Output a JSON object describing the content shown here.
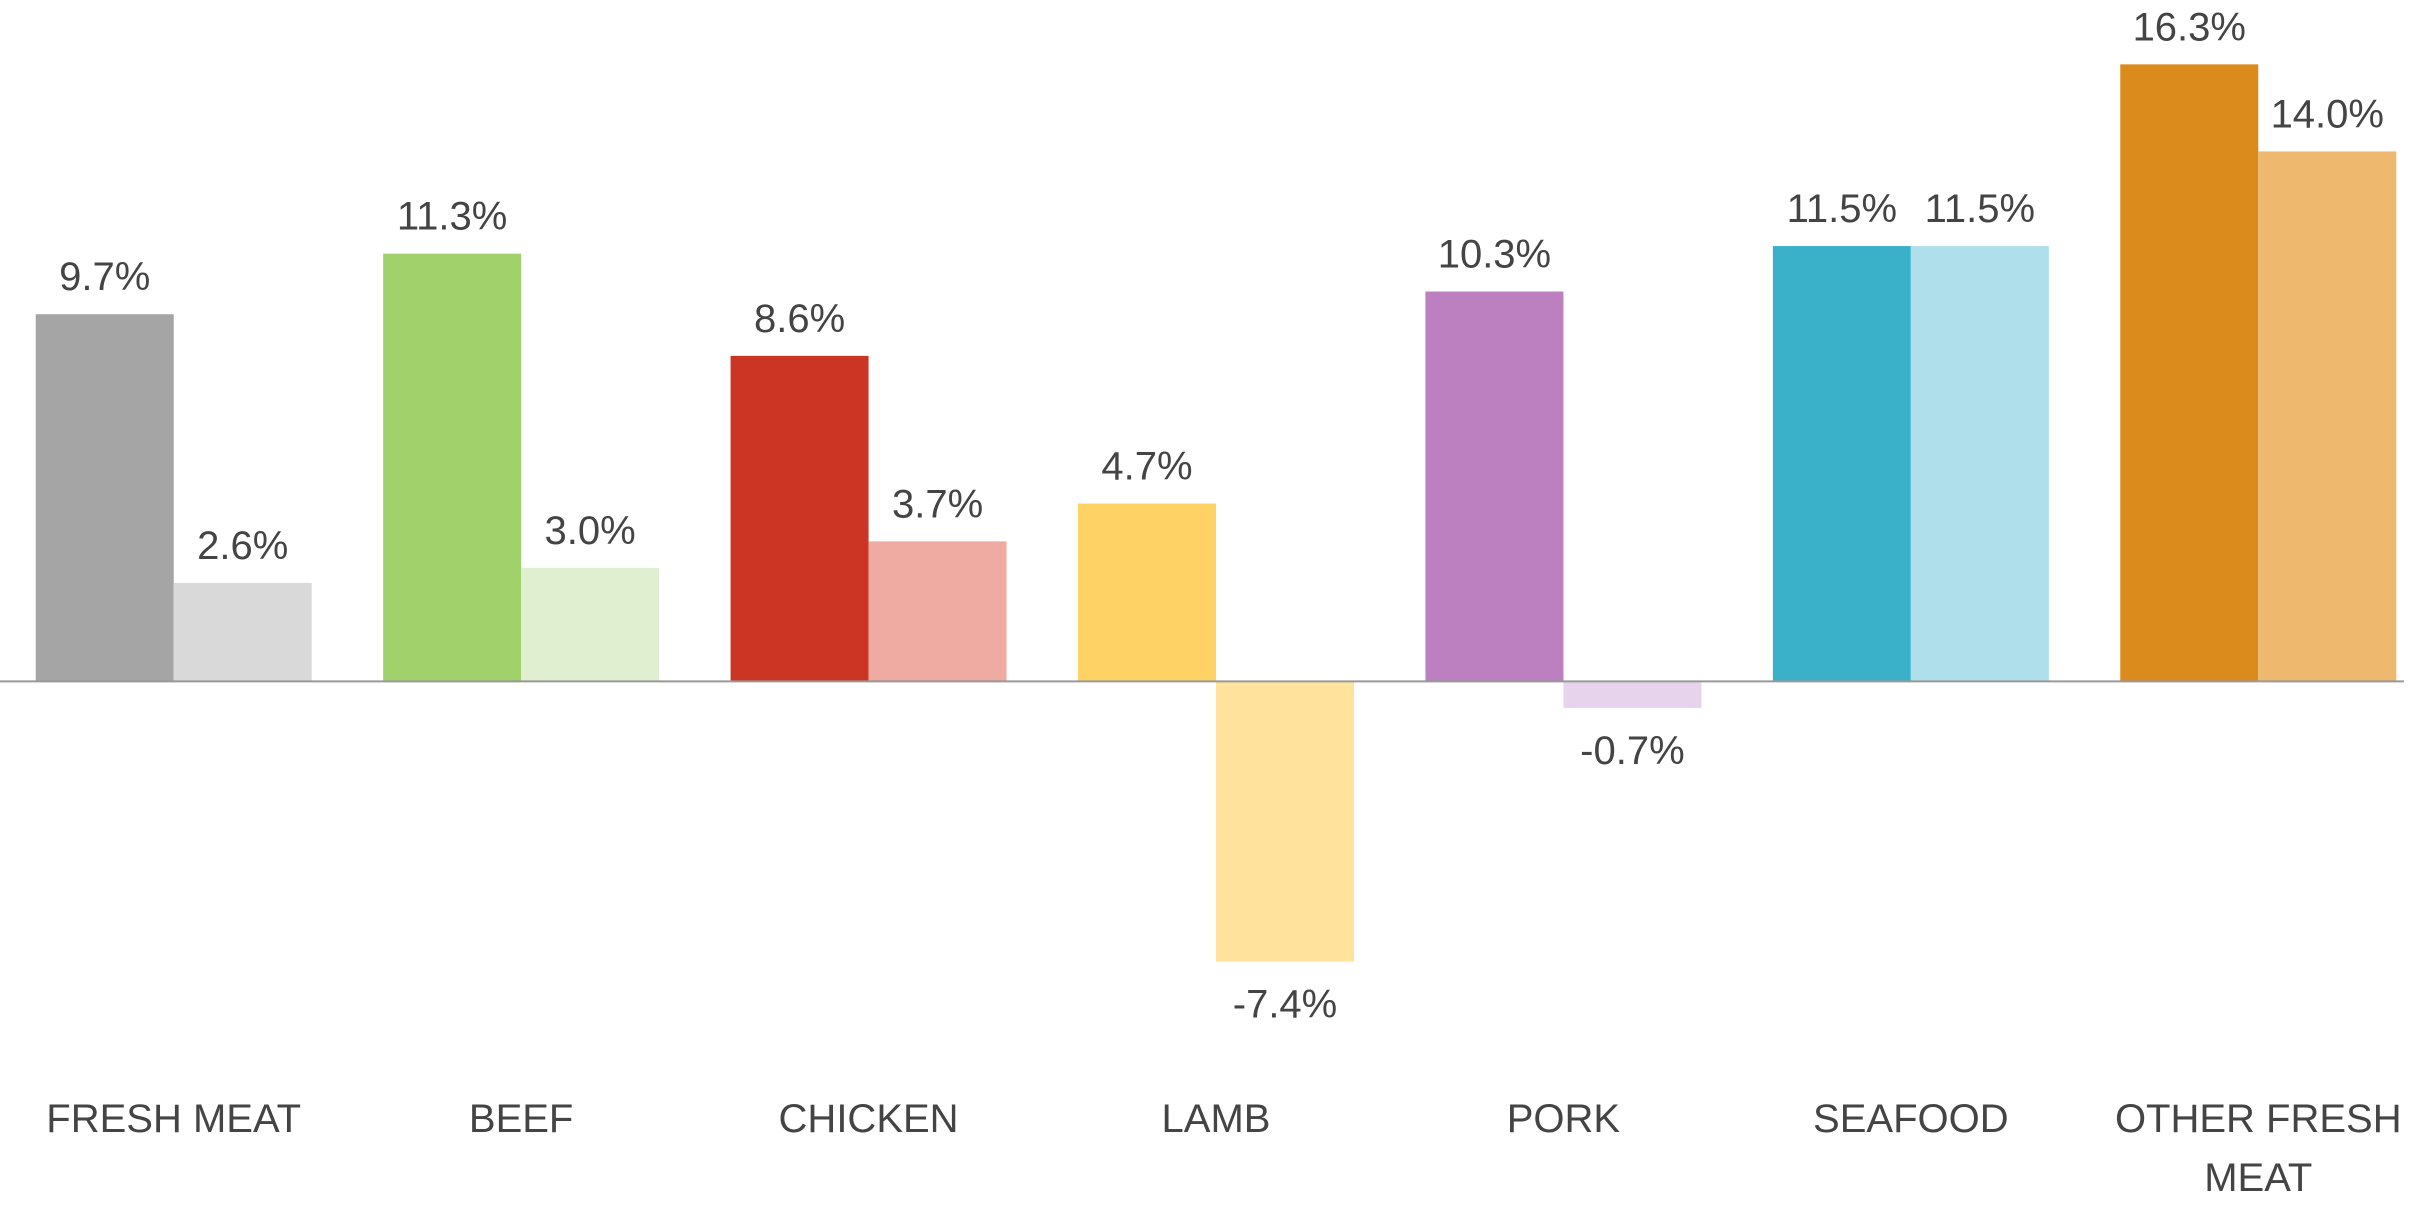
{
  "chart_data": {
    "type": "bar",
    "categories": [
      "FRESH MEAT",
      "BEEF",
      "CHICKEN",
      "LAMB",
      "PORK",
      "SEAFOOD",
      "OTHER FRESH MEAT"
    ],
    "series": [
      {
        "colors": [
          "#a5a5a5",
          "#a1d16a",
          "#cc3524",
          "#ffd266",
          "#bc80c1",
          "#3bb1c9",
          "#db8a1c"
        ],
        "values": [
          9.7,
          11.3,
          8.6,
          4.7,
          10.3,
          11.5,
          16.3
        ],
        "value_labels": [
          "9.7%",
          "11.3%",
          "8.6%",
          "4.7%",
          "10.3%",
          "11.5%",
          "16.3%"
        ]
      },
      {
        "colors": [
          "#d9d9d9",
          "#e0efd0",
          "#efaaa2",
          "#ffe29c",
          "#e8d3ec",
          "#aedfea",
          "#eeb96f"
        ],
        "values": [
          2.6,
          3.0,
          3.7,
          -7.4,
          -0.7,
          11.5,
          14.0
        ],
        "value_labels": [
          "2.6%",
          "3.0%",
          "3.7%",
          "-7.4%",
          "-0.7%",
          "11.5%",
          "14.0%"
        ]
      }
    ],
    "ylim": [
      -10,
      18
    ]
  }
}
